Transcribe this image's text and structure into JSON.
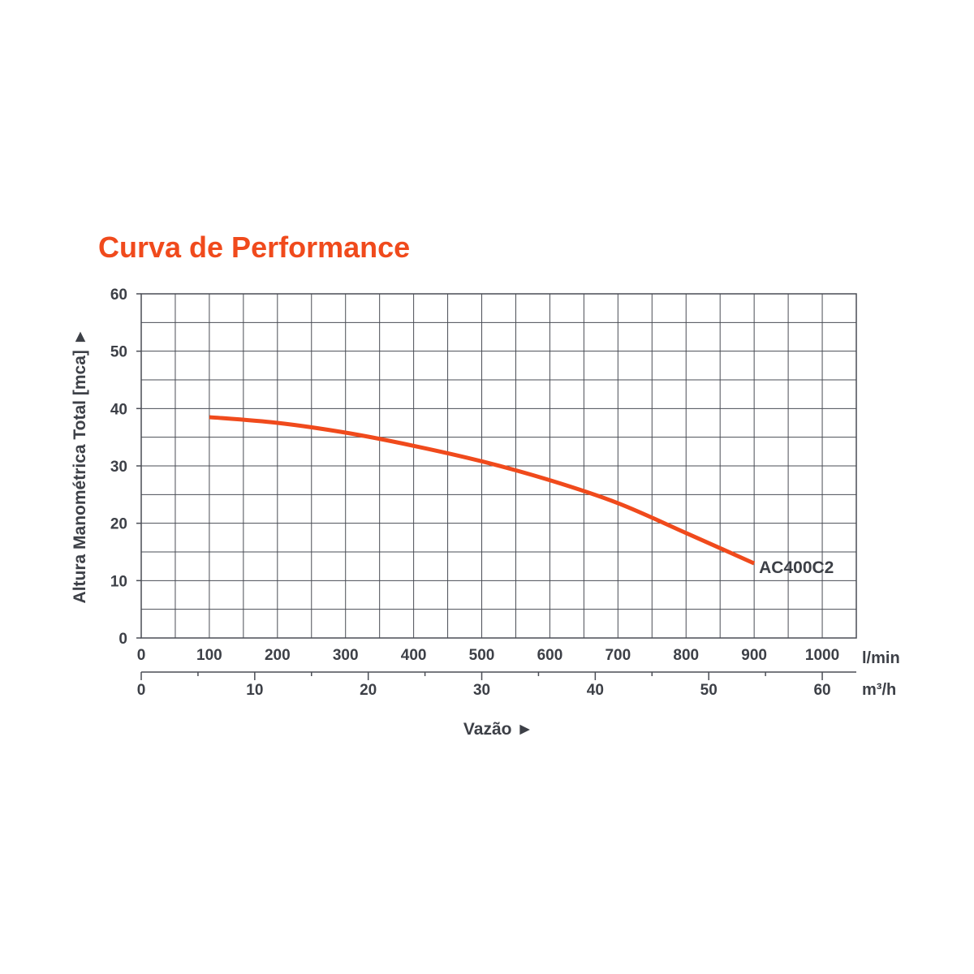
{
  "colors": {
    "accent": "#f04a1c",
    "text": "#3d4047",
    "grid": "#4a4d55",
    "background": "#ffffff"
  },
  "chart_data": {
    "type": "line",
    "title": "Curva de Performance",
    "ylabel": "Altura Manométrica Total [mca] ►",
    "xlabel": "Vazão ►",
    "x_unit_primary": "l/min",
    "x_unit_secondary": "m³/h",
    "xlim": [
      0,
      1050
    ],
    "ylim": [
      0,
      60
    ],
    "x_ticks_primary": [
      "0",
      "100",
      "200",
      "300",
      "400",
      "500",
      "600",
      "700",
      "800",
      "900",
      "1000"
    ],
    "x_ticks_secondary": [
      "0",
      "10",
      "20",
      "30",
      "40",
      "50",
      "60"
    ],
    "y_ticks": [
      "0",
      "10",
      "20",
      "30",
      "40",
      "50",
      "60"
    ],
    "grid": true,
    "series": [
      {
        "name": "AC400C2",
        "x": [
          100,
          200,
          300,
          400,
          500,
          600,
          700,
          800,
          900
        ],
        "y": [
          38.5,
          37.5,
          35.8,
          33.5,
          30.8,
          27.5,
          23.5,
          18.3,
          13.0
        ]
      }
    ]
  }
}
